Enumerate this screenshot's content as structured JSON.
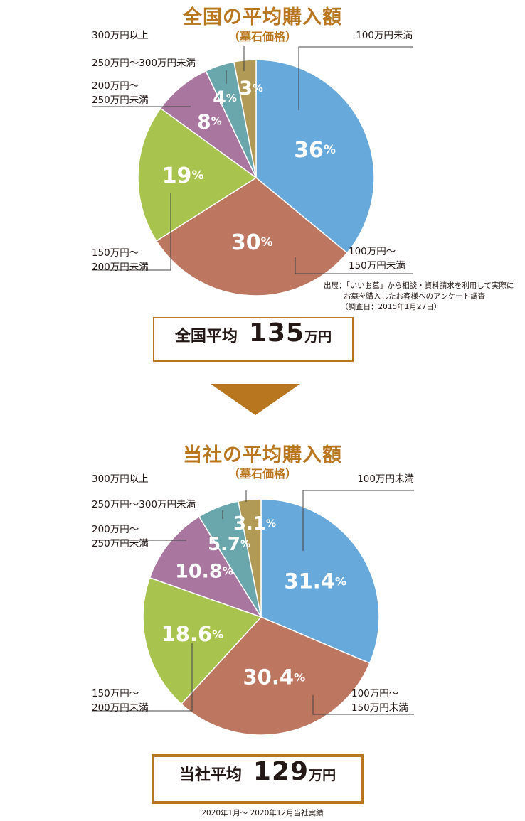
{
  "chart_data": [
    {
      "type": "pie",
      "title": "全国の平均購入額",
      "subtitle": "（墓石価格）",
      "categories": [
        "100万円未満",
        "100万円～150万円未満",
        "150万円～200万円未満",
        "200万円～250万円未満",
        "250万円～300万円未満",
        "300万円以上"
      ],
      "values": [
        36,
        30,
        19,
        8,
        4,
        3
      ],
      "value_labels": [
        "36",
        "30",
        "19",
        "8",
        "4",
        "3"
      ],
      "unit": "%",
      "labels": {
        "c0": [
          "100万円未満"
        ],
        "c1": [
          "100万円～",
          "150万円未満"
        ],
        "c2": [
          "150万円～",
          "200万円未満"
        ],
        "c3": [
          "200万円～",
          "250万円未満"
        ],
        "c4": [
          "250万円～300万円未満"
        ],
        "c5": [
          "300万円以上"
        ]
      },
      "source": [
        "出展：「いいお墓」から相談・資料請求を利用して実際に",
        "お墓を購入したお客様へのアンケート調査",
        "（調査日：2015年1月27日）"
      ],
      "average": {
        "label": "全国平均",
        "value": "135",
        "unit": "万円"
      }
    },
    {
      "type": "pie",
      "title": "当社の平均購入額",
      "subtitle": "（墓石価格）",
      "categories": [
        "100万円未満",
        "100万円～150万円未満",
        "150万円～200万円未満",
        "200万円～250万円未満",
        "250万円～300万円未満",
        "300万円以上"
      ],
      "values": [
        31.4,
        30.4,
        18.6,
        10.8,
        5.7,
        3.1
      ],
      "value_labels": [
        "31.4",
        "30.4",
        "18.6",
        "10.8",
        "5.7",
        "3.1"
      ],
      "unit": "%",
      "labels": {
        "c0": [
          "100万円未満"
        ],
        "c1": [
          "100万円～",
          "150万円未満"
        ],
        "c2": [
          "150万円～",
          "200万円未満"
        ],
        "c3": [
          "200万円～",
          "250万円未満"
        ],
        "c4": [
          "250万円～300万円未満"
        ],
        "c5": [
          "300万円以上"
        ]
      },
      "average": {
        "label": "当社平均",
        "value": "129",
        "unit": "万円"
      },
      "footnote": "2020年1月～ 2020年12月当社実績"
    }
  ],
  "colors": {
    "slices": [
      "#68a9dc",
      "#bd7660",
      "#a8c34e",
      "#a8769e",
      "#6aa7ad",
      "#b09a55"
    ],
    "accent": "#b8761e",
    "leader": "#444444"
  }
}
